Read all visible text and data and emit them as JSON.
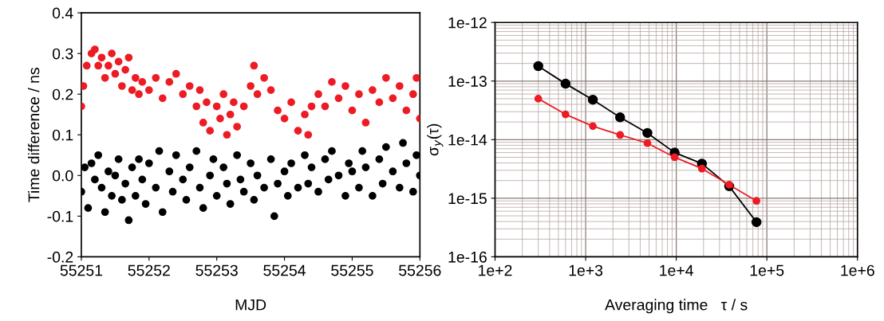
{
  "chart_data": [
    {
      "type": "scatter",
      "xlabel": "MJD",
      "ylabel": "Time difference / ns",
      "xlim": [
        55251,
        55256
      ],
      "xticks": [
        55251,
        55252,
        55253,
        55254,
        55255,
        55256
      ],
      "ylim": [
        -0.2,
        0.4
      ],
      "yticks": [
        -0.2,
        -0.1,
        {
          "value": 0,
          "label": "0.0"
        },
        0.1,
        0.2,
        0.3,
        0.4
      ],
      "marker": "circle",
      "grid": false,
      "series": [
        {
          "color": "#000000",
          "x": [
            55251.0,
            55251.05,
            55251.1,
            55251.15,
            55251.2,
            55251.25,
            55251.3,
            55251.35,
            55251.4,
            55251.45,
            55251.5,
            55251.55,
            55251.6,
            55251.65,
            55251.7,
            55251.75,
            55251.8,
            55251.85,
            55251.9,
            55251.95,
            55252.0,
            55252.1,
            55252.15,
            55252.2,
            55252.3,
            55252.35,
            55252.4,
            55252.5,
            55252.55,
            55252.6,
            55252.7,
            55252.75,
            55252.8,
            55252.9,
            55252.95,
            55253.0,
            55253.1,
            55253.15,
            55253.2,
            55253.3,
            55253.35,
            55253.4,
            55253.5,
            55253.55,
            55253.6,
            55253.7,
            55253.8,
            55253.85,
            55253.9,
            55254.0,
            55254.05,
            55254.1,
            55254.2,
            55254.3,
            55254.35,
            55254.4,
            55254.5,
            55254.6,
            55254.65,
            55254.7,
            55254.8,
            55254.9,
            55254.95,
            55255.0,
            55255.1,
            55255.15,
            55255.2,
            55255.3,
            55255.4,
            55255.45,
            55255.5,
            55255.6,
            55255.7,
            55255.75,
            55255.8,
            55255.9,
            55255.95,
            55256.0
          ],
          "values": [
            -0.04,
            0.02,
            -0.08,
            0.03,
            -0.01,
            0.05,
            -0.03,
            -0.09,
            0.01,
            -0.05,
            0.0,
            0.04,
            -0.06,
            -0.02,
            -0.11,
            0.02,
            -0.05,
            0.04,
            -0.01,
            -0.07,
            0.03,
            -0.03,
            0.06,
            -0.09,
            0.01,
            -0.04,
            0.05,
            -0.01,
            -0.06,
            0.02,
            0.06,
            -0.03,
            -0.08,
            0.0,
            0.04,
            -0.05,
            0.02,
            -0.02,
            -0.07,
            0.05,
            -0.01,
            -0.04,
            0.03,
            -0.06,
            0.0,
            -0.03,
            0.04,
            -0.1,
            -0.02,
            0.01,
            -0.05,
            0.03,
            -0.03,
            0.05,
            -0.02,
            0.02,
            -0.04,
            0.04,
            -0.01,
            0.06,
            0.0,
            -0.05,
            0.03,
            0.01,
            -0.03,
            0.06,
            0.02,
            -0.05,
            0.04,
            -0.02,
            0.07,
            0.01,
            -0.03,
            0.08,
            0.03,
            -0.04,
            0.05,
            0.0
          ]
        },
        {
          "color": "#ed1c24",
          "x": [
            55251.0,
            55251.03,
            55251.08,
            55251.15,
            55251.2,
            55251.25,
            55251.3,
            55251.35,
            55251.4,
            55251.45,
            55251.5,
            55251.55,
            55251.6,
            55251.65,
            55251.7,
            55251.75,
            55251.8,
            55251.85,
            55251.9,
            55252.0,
            55252.1,
            55252.2,
            55252.3,
            55252.4,
            55252.5,
            55252.6,
            55252.7,
            55252.75,
            55252.8,
            55252.85,
            55252.9,
            55253.0,
            55253.05,
            55253.1,
            55253.15,
            55253.2,
            55253.25,
            55253.3,
            55253.4,
            55253.5,
            55253.55,
            55253.6,
            55253.7,
            55253.8,
            55253.9,
            55254.0,
            55254.1,
            55254.2,
            55254.3,
            55254.35,
            55254.4,
            55254.5,
            55254.6,
            55254.7,
            55254.8,
            55254.9,
            55255.0,
            55255.1,
            55255.2,
            55255.3,
            55255.4,
            55255.5,
            55255.6,
            55255.7,
            55255.8,
            55255.9,
            55255.95,
            55256.0
          ],
          "values": [
            0.17,
            0.22,
            0.27,
            0.3,
            0.31,
            0.27,
            0.29,
            0.24,
            0.27,
            0.3,
            0.25,
            0.28,
            0.22,
            0.26,
            0.29,
            0.21,
            0.24,
            0.2,
            0.23,
            0.21,
            0.24,
            0.19,
            0.23,
            0.25,
            0.2,
            0.22,
            0.17,
            0.21,
            0.13,
            0.18,
            0.11,
            0.17,
            0.14,
            0.2,
            0.1,
            0.15,
            0.18,
            0.12,
            0.17,
            0.22,
            0.27,
            0.2,
            0.24,
            0.21,
            0.16,
            0.14,
            0.18,
            0.11,
            0.15,
            0.1,
            0.17,
            0.2,
            0.17,
            0.23,
            0.19,
            0.22,
            0.16,
            0.2,
            0.13,
            0.21,
            0.18,
            0.24,
            0.19,
            0.22,
            0.16,
            0.2,
            0.24,
            0.14
          ]
        }
      ]
    },
    {
      "type": "line",
      "log": "xy",
      "xlabel": "Averaging time   τ / s",
      "ylabel": "σ$_{y}$(τ)",
      "xlim": [
        100,
        1000000
      ],
      "xticks": [
        {
          "value": 100,
          "label": "1e+2"
        },
        {
          "value": 1000,
          "label": "1e+3"
        },
        {
          "value": 10000,
          "label": "1e+4"
        },
        {
          "value": 100000,
          "label": "1e+5"
        },
        {
          "value": 1000000,
          "label": "1e+6"
        }
      ],
      "ylim": [
        1e-16,
        1e-12
      ],
      "yticks": [
        {
          "value": 1e-16,
          "label": "1e-16"
        },
        {
          "value": 1e-15,
          "label": "1e-15"
        },
        {
          "value": 1e-14,
          "label": "1e-14"
        },
        {
          "value": 1e-13,
          "label": "1e-13"
        },
        {
          "value": 1e-12,
          "label": "1e-12"
        }
      ],
      "marker": "circle",
      "line_style": "solid",
      "grid": true,
      "x": [
        300,
        600,
        1200,
        2400,
        4800,
        9600,
        19200,
        38400,
        76800
      ],
      "series": [
        {
          "color": "#000000",
          "values": [
            1.8e-13,
            9e-14,
            4.8e-14,
            2.4e-14,
            1.3e-14,
            6e-15,
            3.9e-15,
            1.6e-15,
            3.9e-16
          ]
        },
        {
          "color": "#ed1c24",
          "values": [
            5e-14,
            2.7e-14,
            1.7e-14,
            1.2e-14,
            8.7e-15,
            5e-15,
            3.2e-15,
            1.7e-15,
            9e-16
          ]
        }
      ]
    }
  ]
}
